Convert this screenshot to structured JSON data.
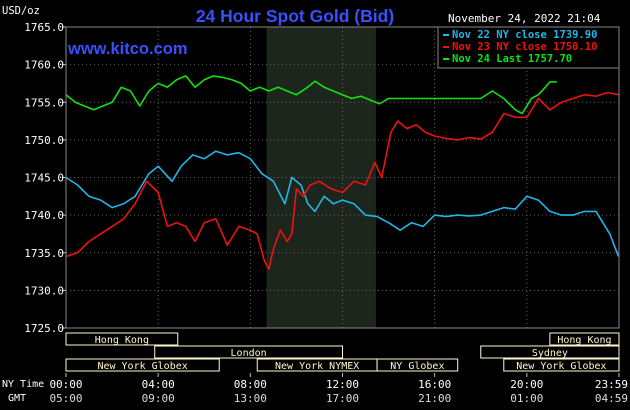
{
  "header": {
    "title": "24 Hour Spot Gold (Bid)",
    "site": "www.kitco.com",
    "timestamp": "November 24, 2022 21:04",
    "y_unit": "USD/oz"
  },
  "legend": {
    "entries": [
      {
        "label": "Nov 22 NY close 1739.90",
        "color": "#22b5e8"
      },
      {
        "label": "Nov 23 NY close 1750.10",
        "color": "#ee1111"
      },
      {
        "label": "Nov 24 Last 1757.70",
        "color": "#11e011"
      }
    ]
  },
  "colors": {
    "background": "#000000",
    "plot_background": "#000000",
    "shade": "#1d261d",
    "grid": "#666666",
    "text": "#ffffff",
    "title": "#3a4fff",
    "site": "#3a4fff",
    "session_fill": "#fff7d0",
    "session_text": "#222222"
  },
  "axis": {
    "nytime_label": "NY Time",
    "gmt_label": "GMT",
    "ny_ticks": [
      "00:00",
      "04:00",
      "08:00",
      "12:00",
      "16:00",
      "20:00",
      "23:59"
    ],
    "gmt_ticks": [
      "05:00",
      "09:00",
      "13:00",
      "17:00",
      "21:00",
      "01:00",
      "04:59"
    ]
  },
  "sessions": [
    {
      "name": "Hong Kong",
      "row": 0,
      "start": 0.0,
      "end": 4.85
    },
    {
      "name": "Hong Kong",
      "row": 0,
      "start": 21.0,
      "end": 24.0
    },
    {
      "name": "London",
      "row": 1,
      "start": 3.85,
      "end": 12.0
    },
    {
      "name": "Sydney",
      "row": 1,
      "start": 18.0,
      "end": 24.0
    },
    {
      "name": "New York Globex",
      "row": 2,
      "start": 0.0,
      "end": 6.65
    },
    {
      "name": "New York NYMEX",
      "row": 2,
      "start": 8.3,
      "end": 13.5
    },
    {
      "name": "NY Globex",
      "row": 2,
      "start": 13.5,
      "end": 17.0
    },
    {
      "name": "New York Globex",
      "row": 2,
      "start": 19.0,
      "end": 24.0
    }
  ],
  "chart_data": {
    "type": "line",
    "title": "24 Hour Spot Gold (Bid)",
    "ylabel": "USD/oz",
    "xlabel": "NY Time",
    "ylim": [
      1725,
      1765
    ],
    "xlim": [
      0,
      24
    ],
    "yticks": [
      "1765.0",
      "1760.0",
      "1755.0",
      "1750.0",
      "1745.0",
      "1740.0",
      "1735.0",
      "1730.0",
      "1725.0"
    ],
    "xticks": [
      "00:00",
      "04:00",
      "08:00",
      "12:00",
      "16:00",
      "20:00",
      "23:59"
    ],
    "grid": true,
    "legend_position": "top-right",
    "shaded_region": [
      8.7,
      13.45
    ],
    "series": [
      {
        "name": "Nov 22 NY close 1739.90",
        "color": "#22b5e8",
        "x": [
          0.0,
          0.5,
          1.0,
          1.5,
          2.0,
          2.5,
          3.0,
          3.3,
          3.6,
          4.0,
          4.3,
          4.6,
          5.0,
          5.5,
          6.0,
          6.5,
          7.0,
          7.5,
          8.0,
          8.5,
          9.0,
          9.5,
          9.8,
          10.2,
          10.5,
          10.8,
          11.2,
          11.6,
          12.0,
          12.5,
          13.0,
          13.5,
          14.0,
          14.5,
          15.0,
          15.5,
          16.0,
          16.5,
          17.0,
          17.5,
          18.0,
          18.5,
          19.0,
          19.5,
          20.0,
          20.5,
          21.0,
          21.5,
          22.0,
          22.5,
          23.0,
          23.3,
          23.6,
          23.98
        ],
        "y": [
          1745.0,
          1744.0,
          1742.5,
          1742.0,
          1741.0,
          1741.5,
          1742.5,
          1744.0,
          1745.5,
          1746.5,
          1745.5,
          1744.5,
          1746.5,
          1748.0,
          1747.5,
          1748.5,
          1748.0,
          1748.3,
          1747.5,
          1745.5,
          1744.5,
          1741.5,
          1745.0,
          1744.0,
          1741.5,
          1740.5,
          1742.5,
          1741.5,
          1742.0,
          1741.5,
          1740.0,
          1739.8,
          1739.0,
          1738.0,
          1739.0,
          1738.5,
          1740.0,
          1739.8,
          1740.0,
          1739.9,
          1740.0,
          1740.5,
          1741.0,
          1740.8,
          1742.5,
          1742.0,
          1740.5,
          1740.0,
          1740.0,
          1740.5,
          1740.5,
          1739.0,
          1737.5,
          1734.5
        ]
      },
      {
        "name": "Nov 23 NY close 1750.10",
        "color": "#ee1111",
        "x": [
          0.0,
          0.5,
          1.0,
          1.5,
          2.0,
          2.5,
          3.0,
          3.5,
          4.0,
          4.4,
          4.8,
          5.2,
          5.6,
          6.0,
          6.5,
          7.0,
          7.5,
          8.0,
          8.3,
          8.6,
          8.8,
          9.0,
          9.3,
          9.6,
          9.8,
          10.0,
          10.3,
          10.6,
          11.0,
          11.5,
          12.0,
          12.5,
          13.0,
          13.4,
          13.7,
          13.9,
          14.1,
          14.4,
          14.8,
          15.2,
          15.6,
          16.0,
          16.5,
          17.0,
          17.5,
          18.0,
          18.5,
          19.0,
          19.5,
          20.0,
          20.5,
          21.0,
          21.5,
          22.0,
          22.5,
          23.0,
          23.5,
          23.98
        ],
        "y": [
          1734.5,
          1735.0,
          1736.5,
          1737.5,
          1738.5,
          1739.5,
          1741.5,
          1744.5,
          1743.0,
          1738.5,
          1739.0,
          1738.5,
          1736.5,
          1739.0,
          1739.5,
          1736.0,
          1738.5,
          1738.0,
          1737.5,
          1734.0,
          1732.8,
          1735.5,
          1738.0,
          1736.5,
          1737.5,
          1743.5,
          1742.5,
          1744.0,
          1744.5,
          1743.5,
          1743.0,
          1744.5,
          1744.0,
          1747.0,
          1745.0,
          1748.0,
          1751.0,
          1752.5,
          1751.5,
          1752.0,
          1751.0,
          1750.5,
          1750.2,
          1750.0,
          1750.3,
          1750.1,
          1751.0,
          1753.5,
          1753.0,
          1753.0,
          1755.5,
          1754.0,
          1755.0,
          1755.5,
          1756.0,
          1755.8,
          1756.3,
          1756.0
        ]
      },
      {
        "name": "Nov 24 Last 1757.70",
        "color": "#11e011",
        "x": [
          0.0,
          0.4,
          0.8,
          1.2,
          1.6,
          2.0,
          2.4,
          2.8,
          3.2,
          3.6,
          4.0,
          4.4,
          4.8,
          5.2,
          5.6,
          6.0,
          6.4,
          6.8,
          7.2,
          7.6,
          8.0,
          8.4,
          8.8,
          9.2,
          9.6,
          10.0,
          10.4,
          10.8,
          11.2,
          11.6,
          12.0,
          12.4,
          12.8,
          13.2,
          13.6,
          14.0,
          14.4,
          15.0,
          16.0,
          17.0,
          18.0,
          18.5,
          19.0,
          19.5,
          19.8,
          20.2,
          20.5,
          20.8,
          21.0,
          21.3
        ],
        "y": [
          1756.0,
          1755.0,
          1754.5,
          1754.0,
          1754.5,
          1755.0,
          1757.0,
          1756.5,
          1754.5,
          1756.5,
          1757.5,
          1757.0,
          1758.0,
          1758.5,
          1757.0,
          1758.0,
          1758.5,
          1758.3,
          1758.0,
          1757.5,
          1756.5,
          1757.0,
          1756.5,
          1757.0,
          1756.5,
          1756.0,
          1756.8,
          1757.8,
          1757.0,
          1756.5,
          1756.0,
          1755.5,
          1755.8,
          1755.3,
          1754.8,
          1755.5,
          1755.5,
          1755.5,
          1755.5,
          1755.5,
          1755.5,
          1756.5,
          1755.5,
          1754.0,
          1753.5,
          1755.5,
          1756.0,
          1757.0,
          1757.7,
          1757.7
        ]
      }
    ]
  }
}
